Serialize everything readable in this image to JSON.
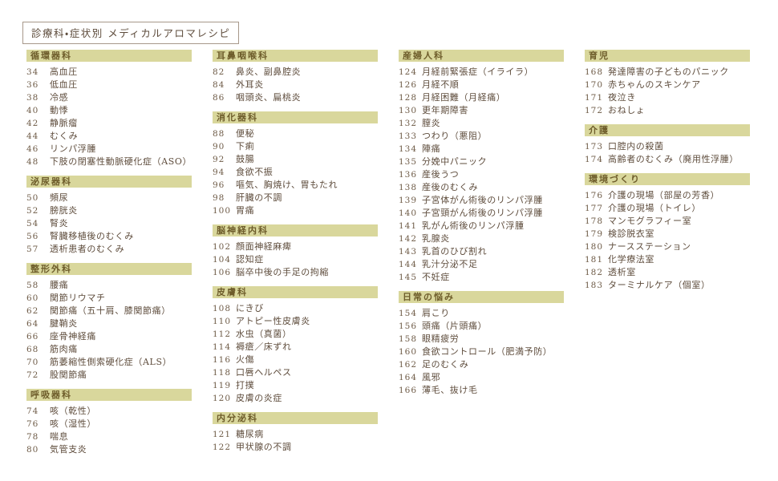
{
  "page": {
    "title": "診療科・症状別 メディカルアロマレシピ"
  },
  "colors": {
    "header_bg": "#d9d79c",
    "header_text": "#6d5c2a",
    "item_text": "#5e4c3c",
    "number_text": "#6f5c48",
    "title_border": "#a7988a",
    "background": "#ffffff"
  },
  "columns": [
    {
      "sections": [
        {
          "title": "循環器科",
          "items": [
            {
              "page": "34",
              "label": "高血圧"
            },
            {
              "page": "36",
              "label": "低血圧"
            },
            {
              "page": "38",
              "label": "冷感"
            },
            {
              "page": "40",
              "label": "動悸"
            },
            {
              "page": "42",
              "label": "静脈瘤"
            },
            {
              "page": "44",
              "label": "むくみ"
            },
            {
              "page": "46",
              "label": "リンパ浮腫"
            },
            {
              "page": "48",
              "label": "下肢の閉塞性動脈硬化症（ASO）"
            }
          ]
        },
        {
          "title": "泌尿器科",
          "items": [
            {
              "page": "50",
              "label": "頻尿"
            },
            {
              "page": "52",
              "label": "膀胱炎"
            },
            {
              "page": "54",
              "label": "腎炎"
            },
            {
              "page": "56",
              "label": "腎臓移植後のむくみ"
            },
            {
              "page": "57",
              "label": "透析患者のむくみ"
            }
          ]
        },
        {
          "title": "整形外科",
          "items": [
            {
              "page": "58",
              "label": "腰痛"
            },
            {
              "page": "60",
              "label": "関節リウマチ"
            },
            {
              "page": "62",
              "label": "関節痛（五十肩、膝関節痛）"
            },
            {
              "page": "64",
              "label": "腱鞘炎"
            },
            {
              "page": "66",
              "label": "座骨神経痛"
            },
            {
              "page": "68",
              "label": "筋肉痛"
            },
            {
              "page": "70",
              "label": "筋萎縮性側索硬化症（ALS）"
            },
            {
              "page": "72",
              "label": "股関節痛"
            }
          ]
        },
        {
          "title": "呼吸器科",
          "items": [
            {
              "page": "74",
              "label": "咳（乾性）"
            },
            {
              "page": "76",
              "label": "咳（湿性）"
            },
            {
              "page": "78",
              "label": "喘息"
            },
            {
              "page": "80",
              "label": "気管支炎"
            }
          ]
        }
      ]
    },
    {
      "sections": [
        {
          "title": "耳鼻咽喉科",
          "items": [
            {
              "page": "82",
              "label": "鼻炎、副鼻腔炎"
            },
            {
              "page": "84",
              "label": "外耳炎"
            },
            {
              "page": "86",
              "label": "咽頭炎、扁桃炎"
            }
          ]
        },
        {
          "title": "消化器科",
          "items": [
            {
              "page": "88",
              "label": "便秘"
            },
            {
              "page": "90",
              "label": "下痢"
            },
            {
              "page": "92",
              "label": "鼓腸"
            },
            {
              "page": "94",
              "label": "食欲不振"
            },
            {
              "page": "96",
              "label": "嘔気、胸焼け、胃もたれ"
            },
            {
              "page": "98",
              "label": "肝臓の不調"
            },
            {
              "page": "100",
              "label": "胃痛"
            }
          ]
        },
        {
          "title": "脳神経内科",
          "items": [
            {
              "page": "102",
              "label": "顔面神経麻痺"
            },
            {
              "page": "104",
              "label": "認知症"
            },
            {
              "page": "106",
              "label": "脳卒中後の手足の拘縮"
            }
          ]
        },
        {
          "title": "皮膚科",
          "items": [
            {
              "page": "108",
              "label": "にきび"
            },
            {
              "page": "110",
              "label": "アトピー性皮膚炎"
            },
            {
              "page": "112",
              "label": "水虫（真菌）"
            },
            {
              "page": "114",
              "label": "褥瘡／床ずれ"
            },
            {
              "page": "116",
              "label": "火傷"
            },
            {
              "page": "118",
              "label": "口唇ヘルペス"
            },
            {
              "page": "119",
              "label": "打撲"
            },
            {
              "page": "120",
              "label": "皮膚の炎症"
            }
          ]
        },
        {
          "title": "内分泌科",
          "items": [
            {
              "page": "121",
              "label": "糖尿病"
            },
            {
              "page": "122",
              "label": "甲状腺の不調"
            }
          ]
        }
      ]
    },
    {
      "sections": [
        {
          "title": "産婦人科",
          "items": [
            {
              "page": "124",
              "label": "月経前緊張症（イライラ）"
            },
            {
              "page": "126",
              "label": "月経不順"
            },
            {
              "page": "128",
              "label": "月経困難（月経痛）"
            },
            {
              "page": "130",
              "label": "更年期障害"
            },
            {
              "page": "132",
              "label": "膣炎"
            },
            {
              "page": "133",
              "label": "つわり（悪阻）"
            },
            {
              "page": "134",
              "label": "陣痛"
            },
            {
              "page": "135",
              "label": "分娩中パニック"
            },
            {
              "page": "136",
              "label": "産後うつ"
            },
            {
              "page": "138",
              "label": "産後のむくみ"
            },
            {
              "page": "139",
              "label": "子宮体がん術後のリンパ浮腫"
            },
            {
              "page": "140",
              "label": "子宮頸がん術後のリンパ浮腫"
            },
            {
              "page": "141",
              "label": "乳がん術後のリンパ浮腫"
            },
            {
              "page": "142",
              "label": "乳腺炎"
            },
            {
              "page": "143",
              "label": "乳首のひび割れ"
            },
            {
              "page": "144",
              "label": "乳汁分泌不足"
            },
            {
              "page": "145",
              "label": "不妊症"
            }
          ]
        },
        {
          "title": "日常の悩み",
          "items": [
            {
              "page": "154",
              "label": "肩こり"
            },
            {
              "page": "156",
              "label": "頭痛（片頭痛）"
            },
            {
              "page": "158",
              "label": "眼精疲労"
            },
            {
              "page": "160",
              "label": "食欲コントロール（肥満予防）"
            },
            {
              "page": "162",
              "label": "足のむくみ"
            },
            {
              "page": "164",
              "label": "風邪"
            },
            {
              "page": "166",
              "label": "薄毛、抜け毛"
            }
          ]
        }
      ]
    },
    {
      "sections": [
        {
          "title": "育児",
          "items": [
            {
              "page": "168",
              "label": "発達障害の子どものパニック"
            },
            {
              "page": "170",
              "label": "赤ちゃんのスキンケア"
            },
            {
              "page": "171",
              "label": "夜泣き"
            },
            {
              "page": "172",
              "label": "おねしょ"
            }
          ]
        },
        {
          "title": "介護",
          "items": [
            {
              "page": "173",
              "label": "口腔内の殺菌"
            },
            {
              "page": "174",
              "label": "高齢者のむくみ（廃用性浮腫）"
            }
          ]
        },
        {
          "title": "環境づくり",
          "items": [
            {
              "page": "176",
              "label": "介護の現場（部屋の芳香）"
            },
            {
              "page": "177",
              "label": "介護の現場（トイレ）"
            },
            {
              "page": "178",
              "label": "マンモグラフィー室"
            },
            {
              "page": "179",
              "label": "検診脱衣室"
            },
            {
              "page": "180",
              "label": "ナースステーション"
            },
            {
              "page": "181",
              "label": "化学療法室"
            },
            {
              "page": "182",
              "label": "透析室"
            },
            {
              "page": "183",
              "label": "ターミナルケア（個室）"
            }
          ]
        }
      ]
    }
  ]
}
